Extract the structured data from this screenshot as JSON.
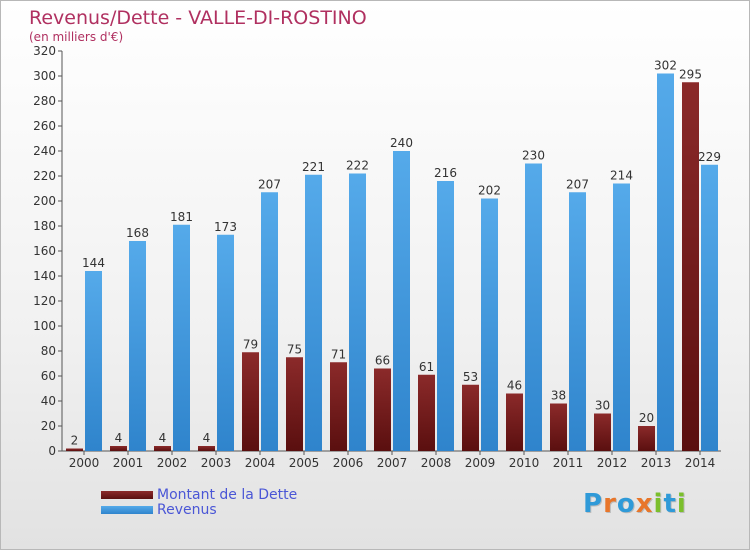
{
  "colors": {
    "title": "#b03060",
    "debt": "#8b2525",
    "debt_dark": "#5a0f0f",
    "revenue": "#4a9fe3",
    "revenue_dark": "#2d7fc4",
    "legend_text": "#4a56d6",
    "axis": "#444444",
    "grid": "#d9d9d9"
  },
  "logo": {
    "letters": [
      "P",
      "r",
      "o",
      "x",
      "i",
      "t",
      "i"
    ],
    "colors": [
      "#2f9ad8",
      "#e8762a",
      "#2f9ad8",
      "#e8762a",
      "#7bbf2c",
      "#2f9ad8",
      "#7bbf2c"
    ]
  },
  "chart_data": {
    "type": "bar",
    "title": "Revenus/Dette - VALLE-DI-ROSTINO",
    "subtitle": "(en milliers d'€)",
    "categories": [
      "2000",
      "2001",
      "2002",
      "2003",
      "2004",
      "2005",
      "2006",
      "2007",
      "2008",
      "2009",
      "2010",
      "2011",
      "2012",
      "2013",
      "2014"
    ],
    "series": [
      {
        "name": "Montant de la Dette",
        "values": [
          2,
          4,
          4,
          4,
          79,
          75,
          71,
          66,
          61,
          53,
          46,
          38,
          30,
          20,
          295
        ]
      },
      {
        "name": "Revenus",
        "values": [
          144,
          168,
          181,
          173,
          207,
          221,
          222,
          240,
          216,
          202,
          230,
          207,
          214,
          302,
          229
        ]
      }
    ],
    "ylim": [
      0,
      320
    ],
    "yticks": [
      "0",
      "20",
      "40",
      "60",
      "80",
      "100",
      "120",
      "140",
      "160",
      "180",
      "200",
      "220",
      "240",
      "260",
      "280",
      "300",
      "320"
    ],
    "grid": false,
    "legend_position": "bottom-left"
  }
}
